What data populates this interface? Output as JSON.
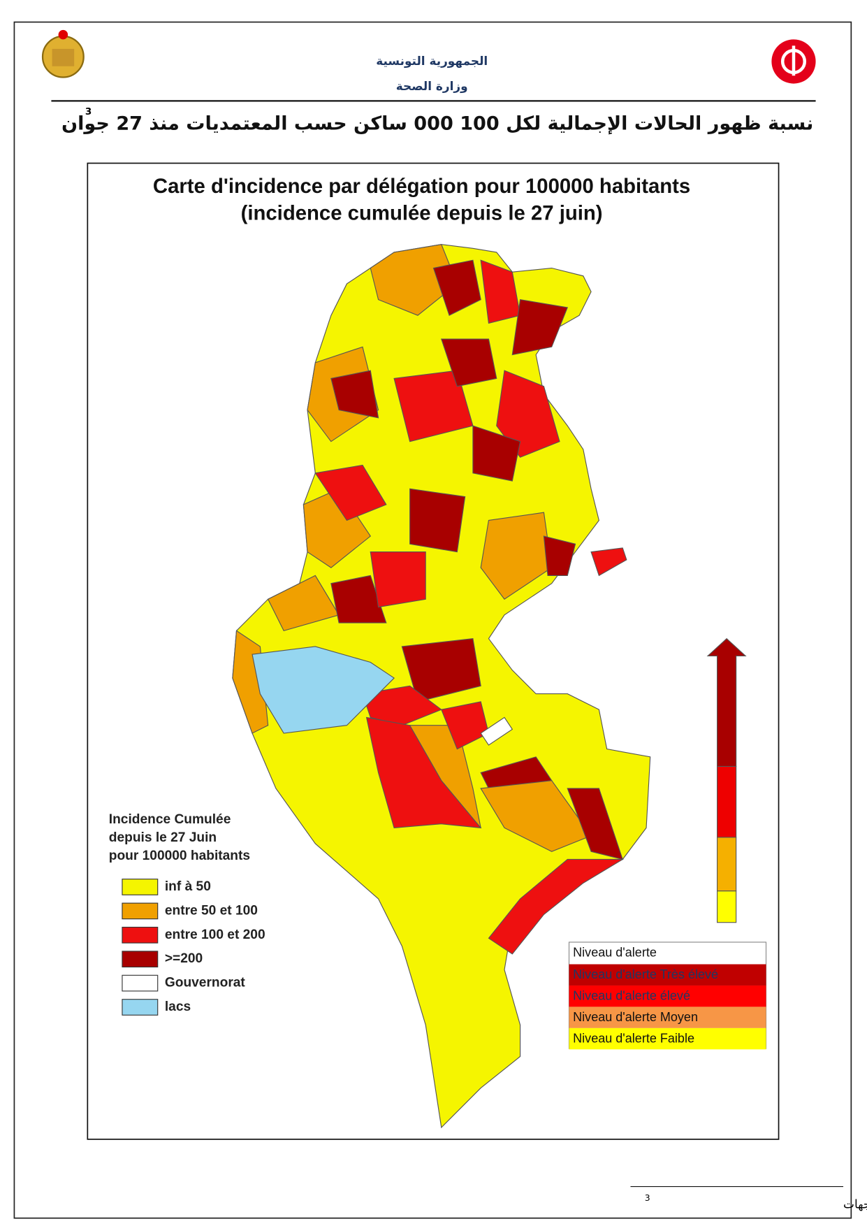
{
  "header": {
    "line1": "الجمهورية التونسية",
    "line2": "وزارة الصحة"
  },
  "title": {
    "text": "نسبة ظهور الحالات الإجمالية لكل 100 000 ساكن حسب المعتمديات منذ 27 جوان",
    "note_ref": "3"
  },
  "map": {
    "title_line1": "Carte d'incidence par délégation pour 100000 habitants",
    "title_line2": "(incidence cumulée depuis le 27 juin)",
    "legend": {
      "title": [
        "Incidence Cumulée",
        "depuis le 27 Juin",
        "pour 100000 habitants"
      ],
      "items": [
        {
          "label": "inf à 50",
          "color": "#f5f500"
        },
        {
          "label": "entre 50 et 100",
          "color": "#f0a000"
        },
        {
          "label": "entre 100 et 200",
          "color": "#ee1010"
        },
        {
          "label": ">=200",
          "color": "#a80000"
        },
        {
          "label": "Gouvernorat",
          "color": "#ffffff"
        },
        {
          "label": "lacs",
          "color": "#96d6f0"
        }
      ]
    },
    "alert_legend": {
      "header": "Niveau d'alerte",
      "items": [
        {
          "label": "Niveau d'alerte Très élevé",
          "color": "#c00000"
        },
        {
          "label": "Niveau d'alerte élevé",
          "color": "#ff0000"
        },
        {
          "label": "Niveau d'alerte Moyen",
          "color": "#f79646"
        },
        {
          "label": "Niveau d'alerte Faible",
          "color": "#ffff00"
        }
      ]
    }
  },
  "footnote": {
    "text": "حسب تحيين المعطيات مع الجهات",
    "ref": "3"
  }
}
